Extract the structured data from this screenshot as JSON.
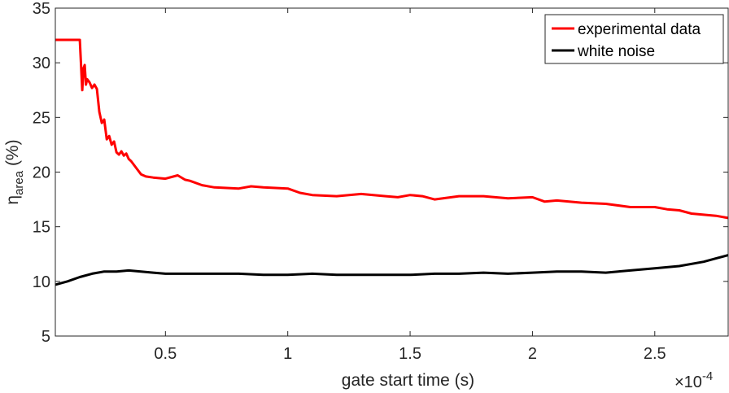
{
  "chart_data": {
    "type": "line",
    "xlabel": "gate start time (s)",
    "ylabel_main": "η",
    "ylabel_sub": "area",
    "ylabel_unit": " (%)",
    "x_exponent_base": "×10",
    "x_exponent_power": "-4",
    "xlim": [
      0.05,
      2.8
    ],
    "ylim": [
      5,
      35
    ],
    "x_ticks": [
      0.5,
      1,
      1.5,
      2,
      2.5
    ],
    "x_tick_labels": [
      "0.5",
      "1",
      "1.5",
      "2",
      "2.5"
    ],
    "y_ticks": [
      5,
      10,
      15,
      20,
      25,
      30,
      35
    ],
    "y_tick_labels": [
      "5",
      "10",
      "15",
      "20",
      "25",
      "30",
      "35"
    ],
    "grid": false,
    "legend_position": "top-right",
    "series": [
      {
        "name": "experimental data",
        "color": "#ff0000",
        "x": [
          0.05,
          0.1,
          0.15,
          0.16,
          0.165,
          0.17,
          0.175,
          0.18,
          0.19,
          0.2,
          0.21,
          0.22,
          0.23,
          0.24,
          0.25,
          0.26,
          0.27,
          0.28,
          0.29,
          0.3,
          0.31,
          0.32,
          0.33,
          0.34,
          0.35,
          0.36,
          0.38,
          0.4,
          0.42,
          0.45,
          0.5,
          0.55,
          0.58,
          0.6,
          0.65,
          0.7,
          0.8,
          0.85,
          0.9,
          1.0,
          1.05,
          1.1,
          1.2,
          1.3,
          1.4,
          1.45,
          1.5,
          1.55,
          1.6,
          1.7,
          1.8,
          1.9,
          2.0,
          2.05,
          2.1,
          2.2,
          2.3,
          2.4,
          2.5,
          2.55,
          2.6,
          2.65,
          2.7,
          2.75,
          2.8
        ],
        "y": [
          32.1,
          32.1,
          32.1,
          27.5,
          29.5,
          29.8,
          28.0,
          28.5,
          28.2,
          27.7,
          28.0,
          27.6,
          25.5,
          24.5,
          24.8,
          23.0,
          23.3,
          22.5,
          22.8,
          21.8,
          21.6,
          21.9,
          21.5,
          21.7,
          21.2,
          21.0,
          20.4,
          19.8,
          19.6,
          19.5,
          19.4,
          19.7,
          19.3,
          19.2,
          18.8,
          18.6,
          18.5,
          18.7,
          18.6,
          18.5,
          18.1,
          17.9,
          17.8,
          18.0,
          17.8,
          17.7,
          17.9,
          17.8,
          17.5,
          17.8,
          17.8,
          17.6,
          17.7,
          17.3,
          17.4,
          17.2,
          17.1,
          16.8,
          16.8,
          16.6,
          16.5,
          16.2,
          16.1,
          16.0,
          15.8
        ]
      },
      {
        "name": "white noise",
        "color": "#000000",
        "x": [
          0.05,
          0.1,
          0.15,
          0.2,
          0.25,
          0.3,
          0.35,
          0.4,
          0.45,
          0.5,
          0.55,
          0.6,
          0.7,
          0.8,
          0.9,
          1.0,
          1.1,
          1.2,
          1.3,
          1.4,
          1.5,
          1.6,
          1.7,
          1.8,
          1.9,
          2.0,
          2.1,
          2.2,
          2.3,
          2.35,
          2.4,
          2.5,
          2.6,
          2.7,
          2.75,
          2.8
        ],
        "y": [
          9.7,
          10.0,
          10.4,
          10.7,
          10.9,
          10.9,
          11.0,
          10.9,
          10.8,
          10.7,
          10.7,
          10.7,
          10.7,
          10.7,
          10.6,
          10.6,
          10.7,
          10.6,
          10.6,
          10.6,
          10.6,
          10.7,
          10.7,
          10.8,
          10.7,
          10.8,
          10.9,
          10.9,
          10.8,
          10.9,
          11.0,
          11.2,
          11.4,
          11.8,
          12.1,
          12.4
        ]
      }
    ]
  }
}
